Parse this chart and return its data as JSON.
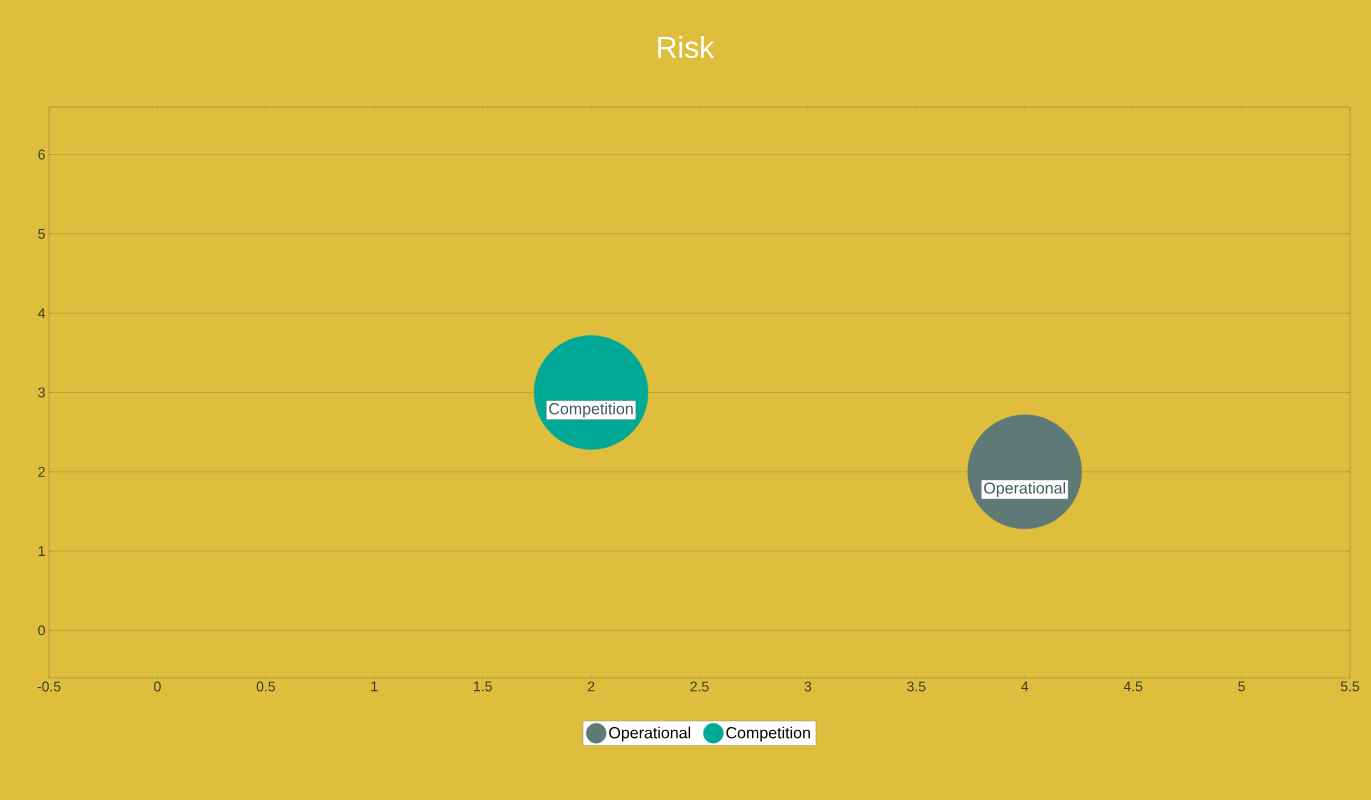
{
  "chart_data": {
    "type": "bubble",
    "title": "Risk",
    "series": [
      {
        "name": "Operational",
        "color": "#5f7a76",
        "x": [
          4
        ],
        "values": [
          2
        ],
        "sizes": [
          1
        ]
      },
      {
        "name": "Competition",
        "color": "#00a896",
        "x": [
          2
        ],
        "values": [
          3
        ],
        "sizes": [
          1
        ]
      }
    ],
    "xlim": [
      -0.5,
      5.5
    ],
    "ylim": [
      -0.6,
      6.6
    ],
    "xticks": [
      -0.5,
      0,
      0.5,
      1,
      1.5,
      2,
      2.5,
      3,
      3.5,
      4,
      4.5,
      5,
      5.5
    ],
    "yticks": [
      0,
      1,
      2,
      3,
      4,
      5,
      6
    ],
    "grid": "y",
    "legend": "bottom"
  }
}
